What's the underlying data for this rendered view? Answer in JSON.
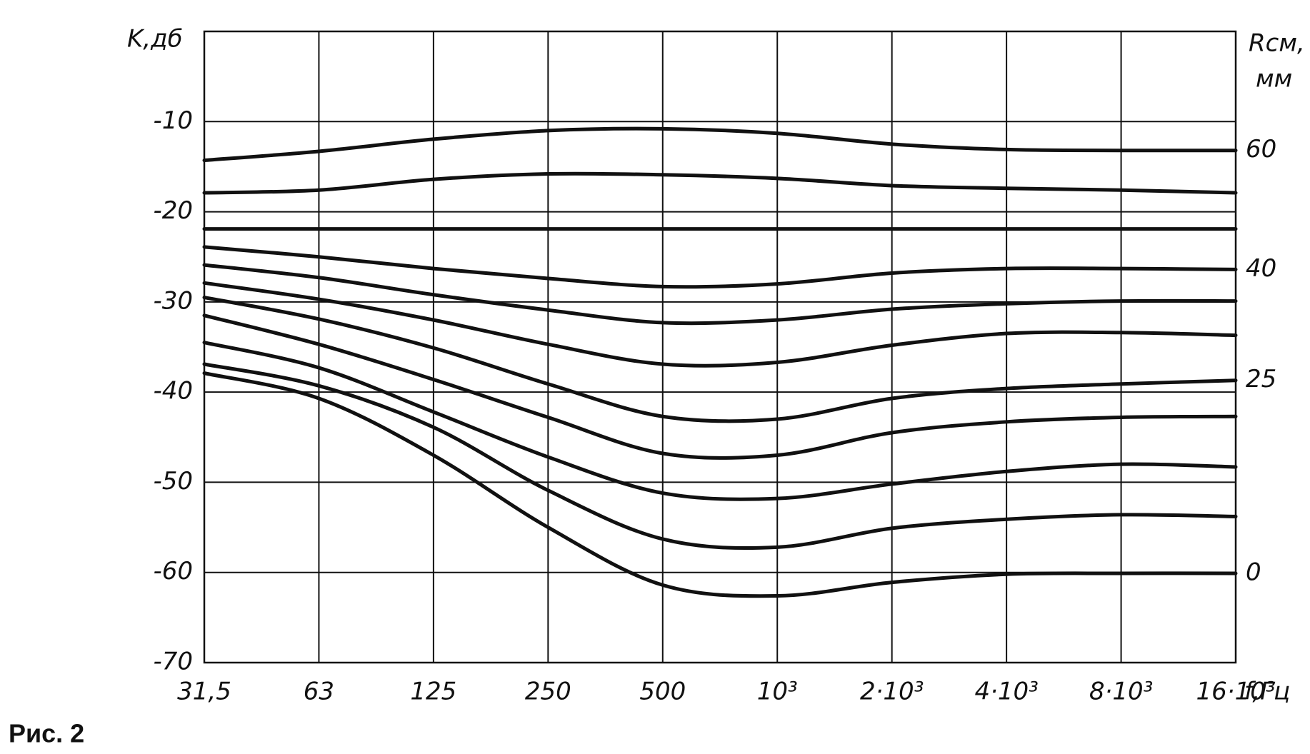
{
  "chart_data": {
    "type": "line",
    "y_label": "K,дб",
    "x_label": "f,Гц",
    "y2_label": [
      "Rсм,",
      "мм"
    ],
    "caption": "Рис. 2",
    "categories": [
      "31,5",
      "63",
      "125",
      "250",
      "500",
      "10³",
      "2·10³",
      "4·10³",
      "8·10³",
      "16·10³"
    ],
    "ylim": [
      -70,
      0
    ],
    "yticks": [
      -70,
      -60,
      -50,
      -40,
      -30,
      -20,
      -10
    ],
    "grid": true,
    "color": "#111111",
    "series": [
      {
        "name": "60",
        "values": [
          -14.3,
          -13.3,
          -11.95,
          -11.0,
          -10.8,
          -11.3,
          -12.5,
          -13.1,
          -13.2,
          -13.2
        ]
      },
      {
        "values": [
          -17.9,
          -17.6,
          -16.4,
          -15.8,
          -15.9,
          -16.3,
          -17.1,
          -17.4,
          -17.6,
          -17.9
        ]
      },
      {
        "values": [
          -21.9,
          -21.9,
          -21.9,
          -21.9,
          -21.9,
          -21.9,
          -21.9,
          -21.9,
          -21.9,
          -21.9
        ]
      },
      {
        "name": "40",
        "values": [
          -23.9,
          -25.0,
          -26.3,
          -27.4,
          -28.3,
          -28.0,
          -26.8,
          -26.3,
          -26.3,
          -26.4
        ]
      },
      {
        "values": [
          -25.9,
          -27.3,
          -29.2,
          -30.9,
          -32.3,
          -32.0,
          -30.8,
          -30.2,
          -29.9,
          -29.9
        ]
      },
      {
        "values": [
          -27.9,
          -29.7,
          -32.0,
          -34.7,
          -36.9,
          -36.7,
          -34.8,
          -33.5,
          -33.4,
          -33.7
        ]
      },
      {
        "name": "25",
        "values": [
          -29.5,
          -31.9,
          -35.1,
          -39.1,
          -42.7,
          -43.0,
          -40.7,
          -39.6,
          -39.1,
          -38.7
        ]
      },
      {
        "values": [
          -31.5,
          -34.7,
          -38.6,
          -42.8,
          -46.8,
          -47.0,
          -44.5,
          -43.3,
          -42.8,
          -42.7
        ]
      },
      {
        "values": [
          -34.5,
          -37.3,
          -42.2,
          -47.2,
          -51.2,
          -51.8,
          -50.2,
          -48.8,
          -48.0,
          -48.3
        ]
      },
      {
        "values": [
          -36.9,
          -39.3,
          -43.9,
          -50.9,
          -56.3,
          -57.2,
          -55.1,
          -54.1,
          -53.6,
          -53.8
        ]
      },
      {
        "name": "0",
        "values": [
          -37.9,
          -40.7,
          -47.0,
          -55.0,
          -61.4,
          -62.6,
          -61.1,
          -60.2,
          -60.1,
          -60.1
        ]
      }
    ]
  }
}
